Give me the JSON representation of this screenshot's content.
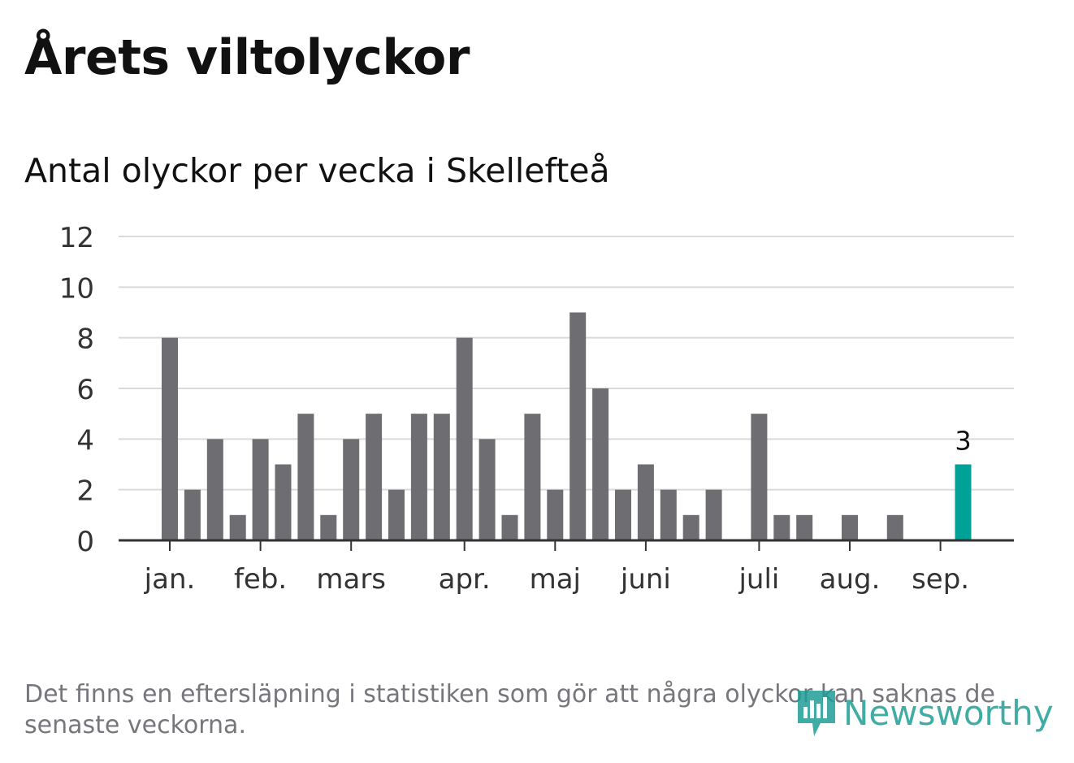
{
  "chart_data": {
    "type": "bar",
    "title": "Årets viltolyckor",
    "subtitle": "Antal olyckor per vecka i Skellefteå",
    "xlabel": "",
    "ylabel": "",
    "ylim": [
      0,
      12
    ],
    "yticks": [
      0,
      2,
      4,
      6,
      8,
      10,
      12
    ],
    "grid": true,
    "legend": "none",
    "month_labels": [
      {
        "label": "jan.",
        "week": 1
      },
      {
        "label": "feb.",
        "week": 5
      },
      {
        "label": "mars",
        "week": 9
      },
      {
        "label": "apr.",
        "week": 14
      },
      {
        "label": "maj",
        "week": 18
      },
      {
        "label": "juni",
        "week": 22
      },
      {
        "label": "juli",
        "week": 27
      },
      {
        "label": "aug.",
        "week": 31
      },
      {
        "label": "sep.",
        "week": 35
      }
    ],
    "weeks": [
      1,
      2,
      3,
      4,
      5,
      6,
      7,
      8,
      9,
      10,
      11,
      12,
      13,
      14,
      15,
      16,
      17,
      18,
      19,
      20,
      21,
      22,
      23,
      24,
      25,
      26,
      27,
      28,
      29,
      30,
      31,
      32,
      33,
      34,
      35,
      36
    ],
    "values": [
      8,
      2,
      4,
      1,
      4,
      3,
      5,
      1,
      4,
      5,
      2,
      5,
      5,
      8,
      4,
      1,
      5,
      2,
      9,
      6,
      2,
      3,
      2,
      1,
      2,
      0,
      5,
      1,
      1,
      0,
      1,
      0,
      1,
      0,
      0,
      3
    ],
    "highlight": {
      "week": 36,
      "value": 3,
      "label": "3"
    },
    "colors": {
      "bar": "#6e6d72",
      "highlight": "#00a196",
      "grid": "#dadada",
      "axis": "#333333"
    }
  },
  "footnote": "Det finns en eftersläpning i statistiken som gör att några olyckor kan saknas de senaste veckorna.",
  "logo": {
    "text": "Newsworthy",
    "icon": "newsworthy-chart-icon"
  }
}
